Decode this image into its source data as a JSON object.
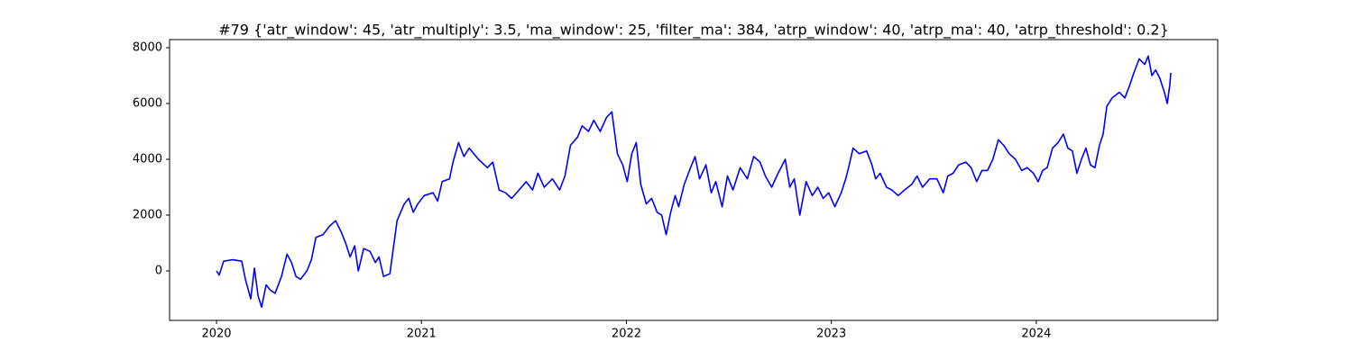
{
  "chart_data": {
    "type": "line",
    "title": "#79 {'atr_window': 45, 'atr_multiply': 3.5, 'ma_window': 25, 'filter_ma': 384, 'atrp_window': 40, 'atrp_ma': 40, 'atrp_threshold': 0.2}",
    "xlim": [
      2019.771,
      2024.885
    ],
    "ylim": [
      -1774,
      8290
    ],
    "xticks": [
      2020,
      2021,
      2022,
      2023,
      2024
    ],
    "yticks": [
      0,
      2000,
      4000,
      6000,
      8000
    ],
    "grid": false,
    "x": [
      2020.0,
      2020.013,
      2020.035,
      2020.079,
      2020.123,
      2020.141,
      2020.167,
      2020.185,
      2020.203,
      2020.22,
      2020.242,
      2020.264,
      2020.286,
      2020.317,
      2020.344,
      2020.366,
      2020.388,
      2020.41,
      2020.441,
      2020.463,
      2020.485,
      2020.52,
      2020.551,
      2020.581,
      2020.608,
      2020.63,
      2020.652,
      2020.674,
      2020.692,
      2020.718,
      2020.749,
      2020.775,
      2020.793,
      2020.815,
      2020.846,
      2020.881,
      2020.916,
      2020.938,
      2020.96,
      2020.982,
      2021.013,
      2021.057,
      2021.079,
      2021.101,
      2021.137,
      2021.154,
      2021.181,
      2021.207,
      2021.233,
      2021.278,
      2021.322,
      2021.348,
      2021.379,
      2021.41,
      2021.44,
      2021.476,
      2021.511,
      2021.542,
      2021.568,
      2021.599,
      2021.639,
      2021.674,
      2021.7,
      2021.727,
      2021.762,
      2021.784,
      2021.815,
      2021.841,
      2021.872,
      2021.903,
      2021.929,
      2021.956,
      2021.982,
      2022.004,
      2022.026,
      2022.048,
      2022.07,
      2022.097,
      2022.123,
      2022.15,
      2022.172,
      2022.194,
      2022.216,
      2022.238,
      2022.255,
      2022.282,
      2022.313,
      2022.335,
      2022.357,
      2022.388,
      2022.414,
      2022.436,
      2022.467,
      2022.493,
      2022.52,
      2022.555,
      2022.59,
      2022.621,
      2022.652,
      2022.678,
      2022.709,
      2022.74,
      2022.775,
      2022.797,
      2022.819,
      2022.846,
      2022.877,
      2022.907,
      2022.934,
      2022.96,
      2022.987,
      2023.017,
      2023.048,
      2023.07,
      2023.084,
      2023.106,
      2023.136,
      2023.172,
      2023.198,
      2023.216,
      2023.238,
      2023.269,
      2023.295,
      2023.326,
      2023.357,
      2023.392,
      2023.418,
      2023.445,
      2023.48,
      2023.515,
      2023.546,
      2023.568,
      2023.594,
      2023.621,
      2023.656,
      2023.682,
      2023.709,
      2023.735,
      2023.762,
      2023.788,
      2023.815,
      2023.841,
      2023.868,
      2023.898,
      2023.929,
      2023.956,
      2023.986,
      2024.009,
      2024.031,
      2024.053,
      2024.079,
      2024.106,
      2024.132,
      2024.154,
      2024.176,
      2024.198,
      2024.22,
      2024.242,
      2024.264,
      2024.286,
      2024.308,
      2024.326,
      2024.344,
      2024.37,
      2024.405,
      2024.432,
      2024.458,
      2024.476,
      2024.502,
      2024.529,
      2024.546,
      2024.564,
      2024.582,
      2024.603,
      2024.625,
      2024.639,
      2024.652,
      2024.656
    ],
    "series": [
      {
        "color": "#0000ff",
        "values": [
          0,
          -150,
          350,
          400,
          350,
          -300,
          -1000,
          100,
          -900,
          -1300,
          -500,
          -700,
          -800,
          -200,
          600,
          300,
          -200,
          -300,
          0,
          400,
          1200,
          1300,
          1600,
          1800,
          1400,
          1000,
          500,
          900,
          0,
          800,
          700,
          300,
          500,
          -200,
          -100,
          1800,
          2400,
          2600,
          2100,
          2400,
          2700,
          2800,
          2500,
          3200,
          3300,
          3900,
          4600,
          4100,
          4400,
          4000,
          3700,
          3900,
          2900,
          2800,
          2600,
          2900,
          3200,
          2900,
          3500,
          3000,
          3300,
          2900,
          3400,
          4500,
          4800,
          5200,
          5000,
          5400,
          5000,
          5500,
          5700,
          4200,
          3800,
          3200,
          4200,
          4600,
          3100,
          2400,
          2600,
          2100,
          2000,
          1300,
          2100,
          2700,
          2300,
          3100,
          3700,
          4100,
          3300,
          3800,
          2800,
          3200,
          2300,
          3400,
          2900,
          3700,
          3300,
          4100,
          3900,
          3400,
          3000,
          3500,
          4000,
          3000,
          3300,
          2000,
          3200,
          2700,
          3000,
          2600,
          2800,
          2300,
          2800,
          3300,
          3700,
          4400,
          4200,
          4300,
          3800,
          3300,
          3500,
          3000,
          2900,
          2700,
          2900,
          3100,
          3400,
          3000,
          3300,
          3300,
          2800,
          3400,
          3500,
          3800,
          3900,
          3700,
          3200,
          3600,
          3600,
          4000,
          4700,
          4500,
          4200,
          4000,
          3600,
          3700,
          3500,
          3200,
          3600,
          3700,
          4400,
          4600,
          4900,
          4400,
          4300,
          3500,
          4000,
          4400,
          3800,
          3700,
          4500,
          4900,
          5900,
          6200,
          6400,
          6200,
          6700,
          7100,
          7600,
          7400,
          7700,
          7000,
          7200,
          6900,
          6400,
          6000,
          6700,
          7100
        ]
      }
    ]
  }
}
